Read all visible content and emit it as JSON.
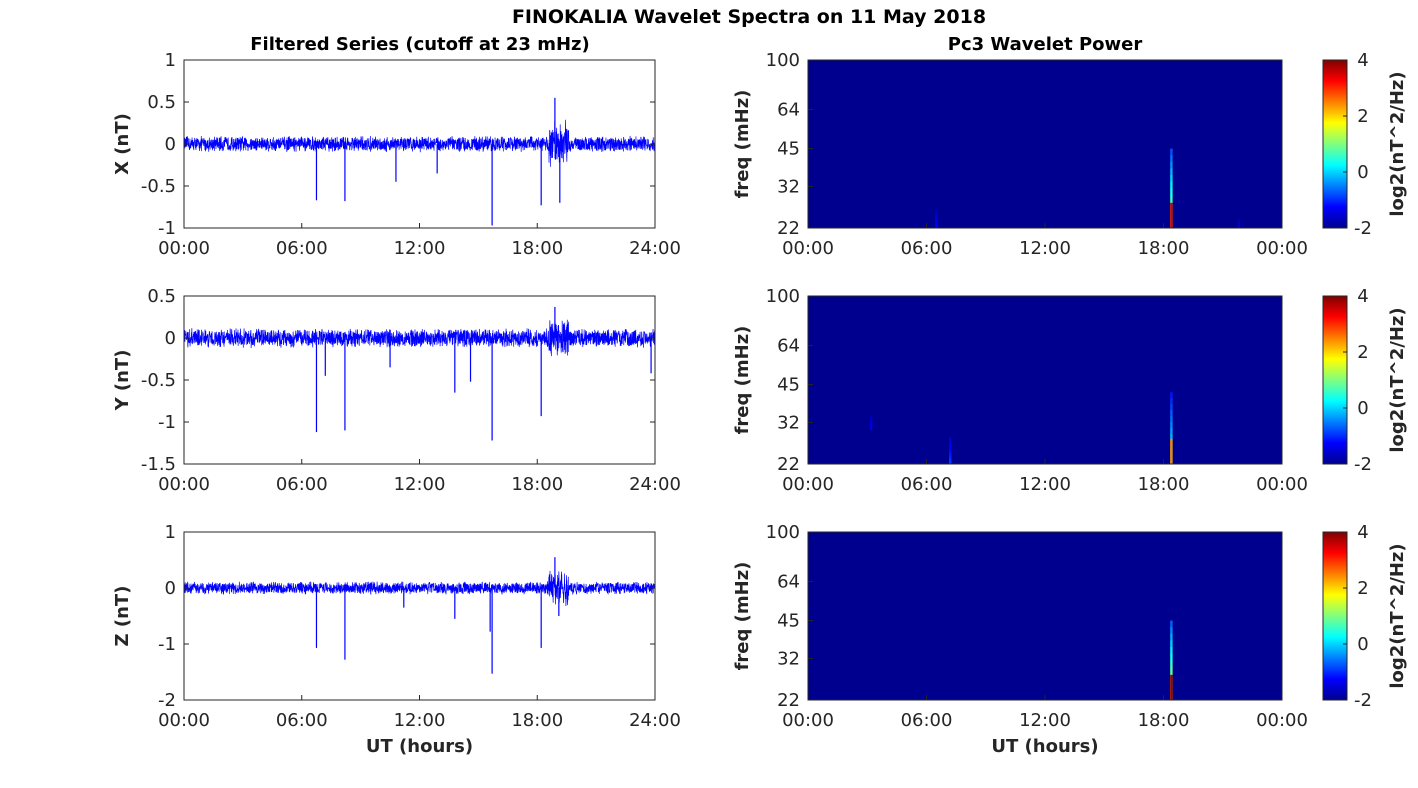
{
  "figure_title": "FINOKALIA Wavelet Spectra on 11 May 2018",
  "left_column_title": "Filtered Series (cutoff at 23 mHz)",
  "right_column_title": "Pc3 Wavelet Power",
  "colors": {
    "series": "#0000ff",
    "spectrum_background": "#00008f"
  },
  "chart_data": [
    {
      "type": "line",
      "title": "Filtered Series (cutoff at 23 mHz)",
      "ylabel": "X (nT)",
      "xlabel": "",
      "xlim": [
        0,
        24
      ],
      "ylim": [
        -1,
        1
      ],
      "x_ticklabels": [
        "00:00",
        "06:00",
        "12:00",
        "18:00",
        "24:00"
      ],
      "y_ticks": [
        -1,
        -0.5,
        0,
        0.5,
        1
      ],
      "y_ticklabels": [
        "-1",
        "-0.5",
        "0",
        "0.5",
        "1"
      ],
      "noise_amplitude": 0.1,
      "disturbed_interval": {
        "x": [
          18.6,
          19.6
        ],
        "amplitude": 0.3
      },
      "spikes": [
        {
          "x": 6.75,
          "y": -0.67
        },
        {
          "x": 8.2,
          "y": -0.68
        },
        {
          "x": 10.8,
          "y": -0.45
        },
        {
          "x": 12.9,
          "y": -0.35
        },
        {
          "x": 15.7,
          "y": -0.97
        },
        {
          "x": 18.2,
          "y": -0.73
        },
        {
          "x": 18.9,
          "y": 0.55
        },
        {
          "x": 19.15,
          "y": -0.7
        }
      ]
    },
    {
      "type": "line",
      "title": "",
      "ylabel": "Y (nT)",
      "xlabel": "",
      "xlim": [
        0,
        24
      ],
      "ylim": [
        -1.5,
        0.5
      ],
      "x_ticklabels": [
        "00:00",
        "06:00",
        "12:00",
        "18:00",
        "24:00"
      ],
      "y_ticks": [
        -1.5,
        -1,
        -0.5,
        0,
        0.5
      ],
      "y_ticklabels": [
        "-1.5",
        "-1",
        "-0.5",
        "0",
        "0.5"
      ],
      "noise_amplitude": 0.12,
      "disturbed_interval": {
        "x": [
          18.6,
          19.6
        ],
        "amplitude": 0.25
      },
      "spikes": [
        {
          "x": 6.75,
          "y": -1.12
        },
        {
          "x": 7.2,
          "y": -0.45
        },
        {
          "x": 8.2,
          "y": -1.1
        },
        {
          "x": 10.5,
          "y": -0.35
        },
        {
          "x": 13.8,
          "y": -0.65
        },
        {
          "x": 14.6,
          "y": -0.52
        },
        {
          "x": 15.7,
          "y": -1.22
        },
        {
          "x": 18.2,
          "y": -0.93
        },
        {
          "x": 18.9,
          "y": 0.37
        },
        {
          "x": 23.8,
          "y": -0.42
        }
      ]
    },
    {
      "type": "line",
      "title": "",
      "ylabel": "Z (nT)",
      "xlabel": "UT (hours)",
      "xlim": [
        0,
        24
      ],
      "ylim": [
        -2,
        1
      ],
      "x_ticklabels": [
        "00:00",
        "06:00",
        "12:00",
        "18:00",
        "24:00"
      ],
      "y_ticks": [
        -2,
        -1,
        0,
        1
      ],
      "y_ticklabels": [
        "-2",
        "-1",
        "0",
        "1"
      ],
      "noise_amplitude": 0.12,
      "disturbed_interval": {
        "x": [
          18.5,
          19.6
        ],
        "amplitude": 0.35
      },
      "spikes": [
        {
          "x": 6.75,
          "y": -1.07
        },
        {
          "x": 8.2,
          "y": -1.28
        },
        {
          "x": 11.2,
          "y": -0.35
        },
        {
          "x": 13.8,
          "y": -0.55
        },
        {
          "x": 15.6,
          "y": -0.78
        },
        {
          "x": 15.7,
          "y": -1.53
        },
        {
          "x": 18.2,
          "y": -1.07
        },
        {
          "x": 18.9,
          "y": 0.55
        },
        {
          "x": 19.1,
          "y": -0.5
        }
      ]
    },
    {
      "type": "heatmap",
      "title": "Pc3 Wavelet Power",
      "ylabel": "freq (mHz)",
      "xlabel": "",
      "xlim": [
        0,
        24
      ],
      "ylim": [
        22,
        100
      ],
      "y_scale": "log",
      "x_ticklabels": [
        "00:00",
        "06:00",
        "12:00",
        "18:00",
        "00:00"
      ],
      "y_ticks": [
        22,
        32,
        45,
        64,
        100
      ],
      "y_ticklabels": [
        "22",
        "32",
        "45",
        "64",
        "100"
      ],
      "colorbar": {
        "label": "log2(nT^2/Hz)",
        "range": [
          -2,
          4
        ],
        "ticks": [
          "-2",
          "0",
          "2",
          "4"
        ]
      },
      "background_level": -2,
      "features": [
        {
          "x": 18.4,
          "f_low": 22,
          "f_high": 45,
          "level": 1.5
        },
        {
          "x": 6.5,
          "f_low": 22,
          "f_high": 26,
          "level": -1.2
        },
        {
          "x": 21.8,
          "f_low": 22,
          "f_high": 24,
          "level": -1.4
        }
      ]
    },
    {
      "type": "heatmap",
      "title": "",
      "ylabel": "freq (mHz)",
      "xlabel": "",
      "xlim": [
        0,
        24
      ],
      "ylim": [
        22,
        100
      ],
      "y_scale": "log",
      "x_ticklabels": [
        "00:00",
        "06:00",
        "12:00",
        "18:00",
        "00:00"
      ],
      "y_ticks": [
        22,
        32,
        45,
        64,
        100
      ],
      "y_ticklabels": [
        "22",
        "32",
        "45",
        "64",
        "100"
      ],
      "colorbar": {
        "label": "log2(nT^2/Hz)",
        "range": [
          -2,
          4
        ],
        "ticks": [
          "-2",
          "0",
          "2",
          "4"
        ]
      },
      "background_level": -2,
      "features": [
        {
          "x": 18.4,
          "f_low": 22,
          "f_high": 42,
          "level": 0.5
        },
        {
          "x": 7.2,
          "f_low": 22,
          "f_high": 28,
          "level": -0.8
        },
        {
          "x": 3.2,
          "f_low": 30,
          "f_high": 34,
          "level": -1.3
        }
      ]
    },
    {
      "type": "heatmap",
      "title": "",
      "ylabel": "freq (mHz)",
      "xlabel": "UT (hours)",
      "xlim": [
        0,
        24
      ],
      "ylim": [
        22,
        100
      ],
      "y_scale": "log",
      "x_ticklabels": [
        "00:00",
        "06:00",
        "12:00",
        "18:00",
        "00:00"
      ],
      "y_ticks": [
        22,
        32,
        45,
        64,
        100
      ],
      "y_ticklabels": [
        "22",
        "32",
        "45",
        "64",
        "100"
      ],
      "colorbar": {
        "label": "log2(nT^2/Hz)",
        "range": [
          -2,
          4
        ],
        "ticks": [
          "-2",
          "0",
          "2",
          "4"
        ]
      },
      "background_level": -2,
      "features": [
        {
          "x": 18.4,
          "f_low": 22,
          "f_high": 45,
          "level": 1.8
        }
      ]
    }
  ]
}
